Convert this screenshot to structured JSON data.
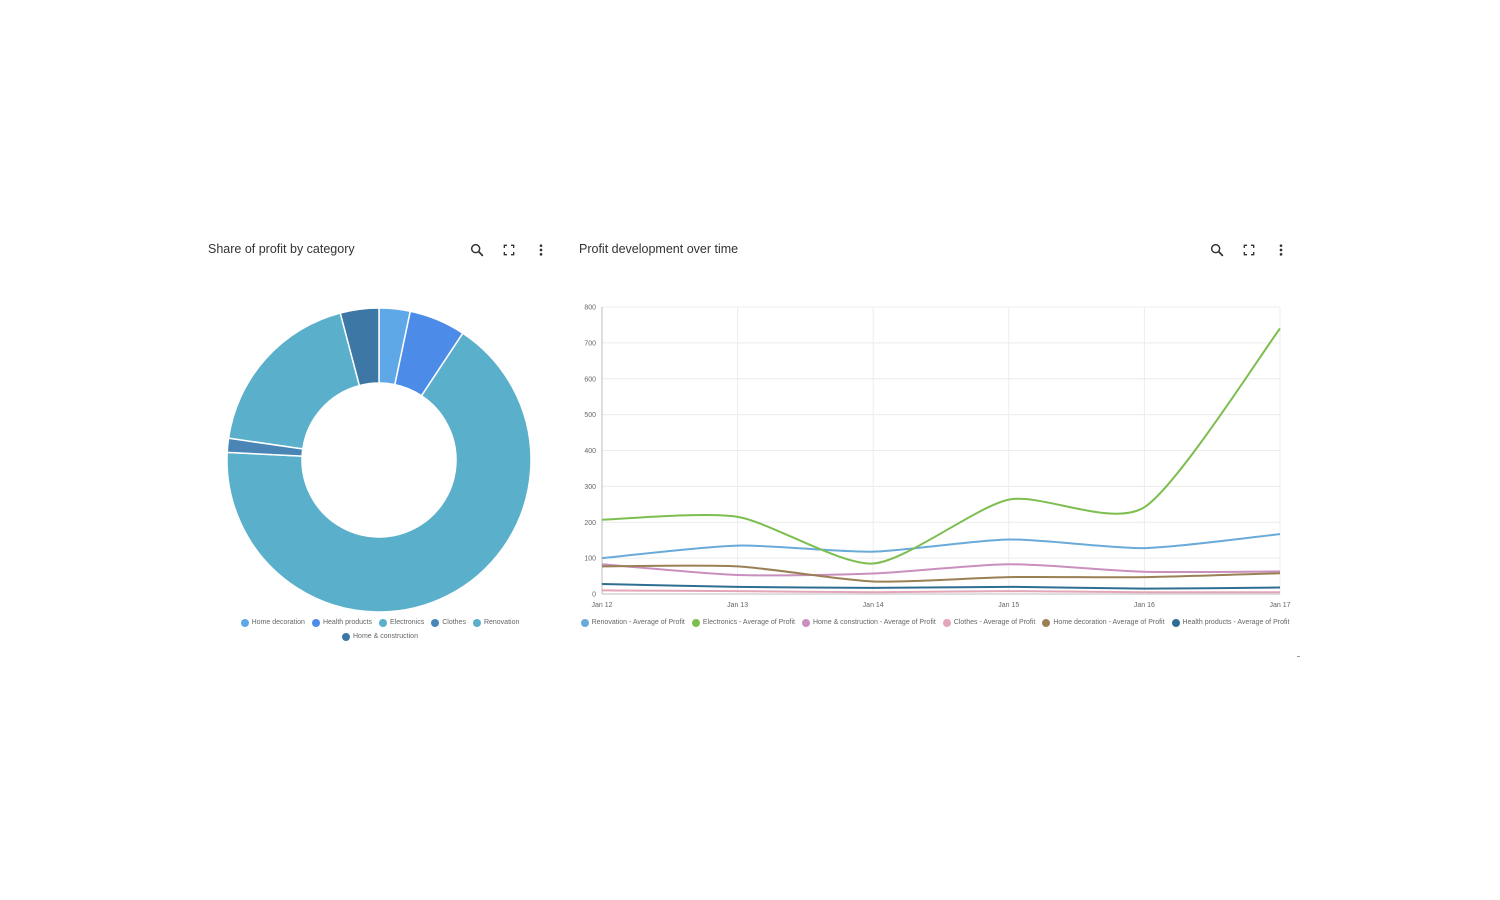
{
  "donut_widget": {
    "title": "Share of profit by category",
    "toolbar": {
      "search_icon": "search-icon",
      "expand_icon": "fullscreen-icon",
      "menu_icon": "more-vert-icon"
    }
  },
  "line_widget": {
    "title": "Profit development over time",
    "toolbar": {
      "search_icon": "search-icon",
      "expand_icon": "fullscreen-icon",
      "menu_icon": "more-vert-icon"
    }
  },
  "chart_data": [
    {
      "type": "pie",
      "donut": true,
      "title": "Share of profit by category",
      "slices": [
        {
          "name": "Home decoration",
          "value": 3.3,
          "color": "#5FA8E8"
        },
        {
          "name": "Health products",
          "value": 6.0,
          "color": "#4C8BE8"
        },
        {
          "name": "Electronics",
          "value": 66.5,
          "color": "#5AAFCB"
        },
        {
          "name": "Clothes",
          "value": 1.5,
          "color": "#4A86B5"
        },
        {
          "name": "Renovation",
          "value": 18.6,
          "color": "#5AAFCB"
        },
        {
          "name": "Home & construction",
          "value": 4.1,
          "color": "#3C77A5"
        }
      ],
      "legend_position": "bottom"
    },
    {
      "type": "line",
      "title": "Profit development over time",
      "categories": [
        "Jan 12",
        "Jan 13",
        "Jan 14",
        "Jan 15",
        "Jan 16",
        "Jan 17"
      ],
      "ylim": [
        0,
        800
      ],
      "yticks": [
        0,
        100,
        200,
        300,
        400,
        500,
        600,
        700,
        800
      ],
      "grid": true,
      "legend_position": "bottom",
      "series": [
        {
          "name": "Renovation - Average of Profit",
          "color": "#6AAAD8",
          "values": [
            100,
            135,
            118,
            152,
            128,
            167
          ]
        },
        {
          "name": "Electronics - Average of Profit",
          "color": "#7DBE50",
          "values": [
            207,
            215,
            85,
            263,
            242,
            740
          ]
        },
        {
          "name": "Home & construction - Average of Profit",
          "color": "#C98FBE",
          "values": [
            83,
            53,
            57,
            83,
            62,
            63
          ]
        },
        {
          "name": "Clothes - Average of Profit",
          "color": "#E5A5B8",
          "values": [
            10,
            8,
            5,
            8,
            5,
            5
          ]
        },
        {
          "name": "Home decoration - Average of Profit",
          "color": "#9A8155",
          "values": [
            77,
            77,
            35,
            47,
            47,
            58
          ]
        },
        {
          "name": "Health products - Average of Profit",
          "color": "#2F6E93",
          "values": [
            28,
            20,
            17,
            20,
            15,
            18
          ]
        }
      ]
    }
  ]
}
